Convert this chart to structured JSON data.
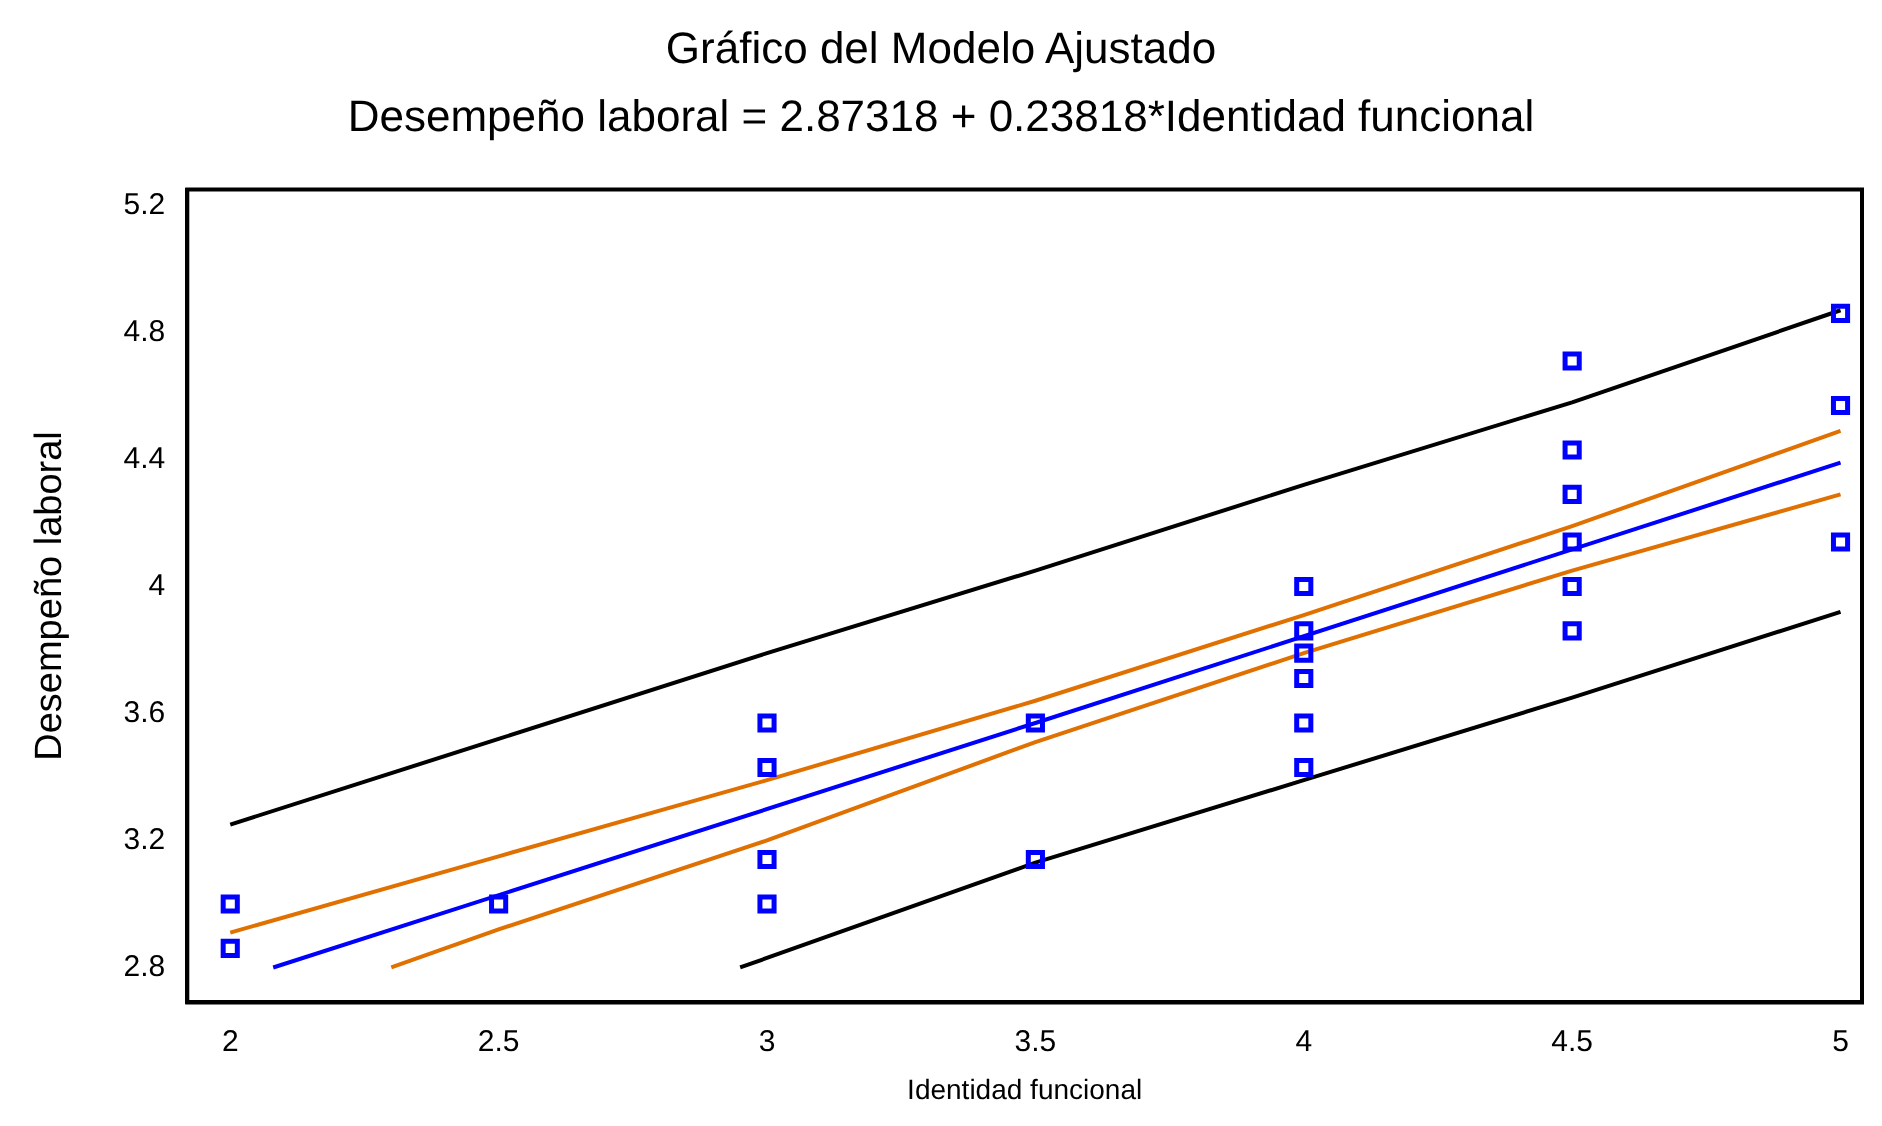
{
  "chart_data": {
    "type": "scatter",
    "title": "Gráfico del Modelo Ajustado",
    "subtitle": "Desempeño laboral = 2.87318 + 0.23818*Identidad funcional",
    "xlabel": "Identidad funcional",
    "ylabel": "Desempeño laboral",
    "xlim": [
      1.92,
      5.04
    ],
    "xticks": [
      2,
      2.5,
      3,
      3.5,
      4,
      4.5,
      5
    ],
    "ylim": [
      2.69,
      5.25
    ],
    "yticks": [
      2.8,
      3.2,
      3.6,
      4,
      4.4,
      4.8,
      5.2
    ],
    "grid": false,
    "legend": false,
    "series": [
      {
        "color": "#0000ff",
        "marker": "square",
        "x": [
          2,
          2,
          2.5,
          3,
          3,
          3,
          3,
          3.5,
          3.5,
          4,
          4,
          4,
          4,
          4,
          4,
          4.5,
          4.5,
          4.5,
          4.5,
          4.5,
          4.5,
          5,
          5,
          5
        ],
        "values": [
          3.0,
          2.86,
          3.0,
          3.57,
          3.43,
          3.14,
          3.0,
          3.57,
          3.14,
          4.0,
          3.86,
          3.79,
          3.71,
          3.57,
          3.43,
          4.71,
          4.43,
          4.29,
          4.14,
          4.0,
          3.86,
          4.86,
          4.57,
          4.14
        ]
      },
      {
        "type": "line",
        "color": "#0000ff",
        "marker": "none",
        "x": [
          2.08,
          3.5,
          5
        ],
        "values": [
          2.8,
          3.57,
          4.39
        ]
      },
      {
        "type": "line",
        "color": "#e07000",
        "marker": "none",
        "x": [
          2,
          2.5,
          3,
          3.5,
          4,
          4.5,
          5
        ],
        "values": [
          2.91,
          3.15,
          3.39,
          3.64,
          3.91,
          4.19,
          4.49
        ]
      },
      {
        "type": "line",
        "color": "#e07000",
        "marker": "none",
        "x": [
          2.3,
          2.5,
          3,
          3.5,
          4,
          4.5,
          5
        ],
        "values": [
          2.8,
          2.92,
          3.2,
          3.51,
          3.79,
          4.05,
          4.29
        ]
      },
      {
        "type": "line",
        "color": "#000000",
        "marker": "none",
        "x": [
          2,
          2.5,
          3,
          3.5,
          4,
          4.5,
          5
        ],
        "values": [
          3.25,
          3.52,
          3.79,
          4.05,
          4.32,
          4.58,
          4.87
        ]
      },
      {
        "type": "line",
        "color": "#000000",
        "marker": "none",
        "x": [
          2.95,
          3.5,
          4,
          4.5,
          5
        ],
        "values": [
          2.8,
          3.13,
          3.39,
          3.65,
          3.92
        ]
      }
    ]
  }
}
